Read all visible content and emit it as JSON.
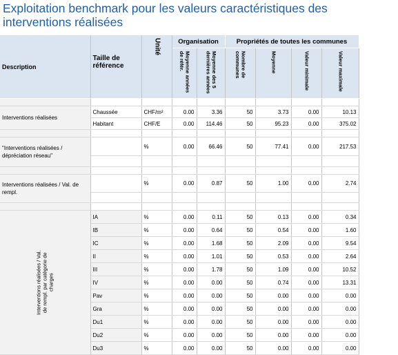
{
  "title": "Exploitation benchmark pour les valeurs caractéristiques des interventions réalisées",
  "header": {
    "description": "Description",
    "taille": "Taille de référence",
    "unite": "Unité",
    "group_org": "Organisation",
    "group_prop": "Propriétés de toutes les communes",
    "col_moy_annees": "Moyenne années de référ.",
    "col_moy_5": "Moyenne des 5 dernières années",
    "col_nombre": "Nombre de communes",
    "col_moyenne": "Moyenne",
    "col_min": "Valeur minimale",
    "col_max": "Valeur maximale"
  },
  "sections": [
    {
      "label": "Interventions réalisées",
      "rows": [
        {
          "ref": "Chaussée",
          "unit": "CHF/m²",
          "v1": "0.00",
          "v2": "3.36",
          "n": "50",
          "mean": "3.73",
          "min": "0.00",
          "max": "10.13"
        },
        {
          "ref": "Habitant",
          "unit": "CHF/E",
          "v1": "0.00",
          "v2": "114.46",
          "n": "50",
          "mean": "95.23",
          "min": "0.00",
          "max": "375.02"
        }
      ]
    },
    {
      "label": "\"Interventions réalisées / dépréciation réseau\"",
      "rows": [
        {
          "ref": "",
          "unit": "%",
          "v1": "0.00",
          "v2": "66.46",
          "n": "50",
          "mean": "77.41",
          "min": "0.00",
          "max": "217.53"
        }
      ]
    },
    {
      "label": "Interventions réalisées / Val. de rempl.",
      "rows": [
        {
          "ref": "",
          "unit": "%",
          "v1": "0.00",
          "v2": "0.87",
          "n": "50",
          "mean": "1.00",
          "min": "0.00",
          "max": "2.74"
        }
      ]
    }
  ],
  "category_label": "Interventions réalisées / Val. de rempl. par catégorie de charges",
  "categories": [
    {
      "code": "IA",
      "unit": "%",
      "v1": "0.00",
      "v2": "0.11",
      "n": "50",
      "mean": "0.13",
      "min": "0.00",
      "max": "0.34"
    },
    {
      "code": "IB",
      "unit": "%",
      "v1": "0.00",
      "v2": "0.64",
      "n": "50",
      "mean": "0.54",
      "min": "0.00",
      "max": "1.60"
    },
    {
      "code": "IC",
      "unit": "%",
      "v1": "0.00",
      "v2": "1.68",
      "n": "50",
      "mean": "2.09",
      "min": "0.00",
      "max": "9.54"
    },
    {
      "code": "II",
      "unit": "%",
      "v1": "0.00",
      "v2": "1.01",
      "n": "50",
      "mean": "0.53",
      "min": "0.00",
      "max": "2.64"
    },
    {
      "code": "III",
      "unit": "%",
      "v1": "0.00",
      "v2": "1.78",
      "n": "50",
      "mean": "1.09",
      "min": "0.00",
      "max": "10.52"
    },
    {
      "code": "IV",
      "unit": "%",
      "v1": "0.00",
      "v2": "0.00",
      "n": "50",
      "mean": "0.74",
      "min": "0.00",
      "max": "13.31"
    },
    {
      "code": "Pav",
      "unit": "%",
      "v1": "0.00",
      "v2": "0.00",
      "n": "50",
      "mean": "0.00",
      "min": "0.00",
      "max": "0.00"
    },
    {
      "code": "Gra",
      "unit": "%",
      "v1": "0.00",
      "v2": "0.00",
      "n": "50",
      "mean": "0.00",
      "min": "0.00",
      "max": "0.00"
    },
    {
      "code": "Du1",
      "unit": "%",
      "v1": "0.00",
      "v2": "0.00",
      "n": "50",
      "mean": "0.00",
      "min": "0.00",
      "max": "0.00"
    },
    {
      "code": "Du2",
      "unit": "%",
      "v1": "0.00",
      "v2": "0.00",
      "n": "50",
      "mean": "0.00",
      "min": "0.00",
      "max": "0.00"
    },
    {
      "code": "Du3",
      "unit": "%",
      "v1": "0.00",
      "v2": "0.00",
      "n": "50",
      "mean": "0.00",
      "min": "0.00",
      "max": "0.00"
    }
  ],
  "colors": {
    "title": "#1f5fa8",
    "header_bg": "#dbe5f1",
    "desc_bg": "#f2f2f2"
  }
}
